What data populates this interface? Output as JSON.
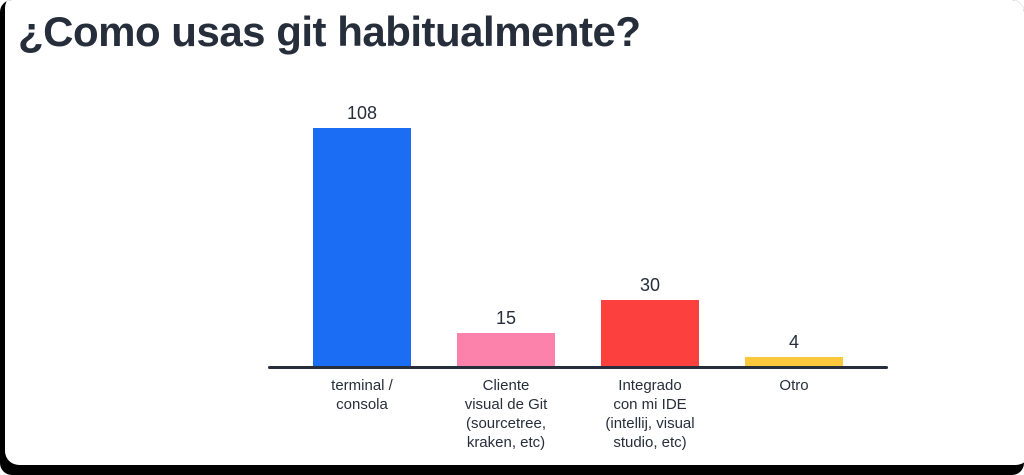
{
  "page": {
    "background_color": "#ffffff",
    "frame_color": "#000000",
    "text_color": "#272E3B"
  },
  "chart_data": {
    "type": "bar",
    "title": "¿Como usas git habitualmente?",
    "categories": [
      "terminal /\nconsola",
      "Cliente\nvisual de Git\n(sourcetree,\nkraken, etc)",
      "Integrado\ncon mi IDE\n(intellij, visual\nstudio, etc)",
      "Otro"
    ],
    "values": [
      108,
      15,
      30,
      4
    ],
    "data_labels": [
      "108",
      "15",
      "30",
      "4"
    ],
    "bar_colors": [
      "#1B6EF3",
      "#FC82AC",
      "#FB403D",
      "#FEC83D"
    ],
    "xlabel": "",
    "ylabel": "",
    "ylim": [
      0,
      120
    ],
    "grid": false,
    "legend": false,
    "axis_color": "#272E3B"
  }
}
